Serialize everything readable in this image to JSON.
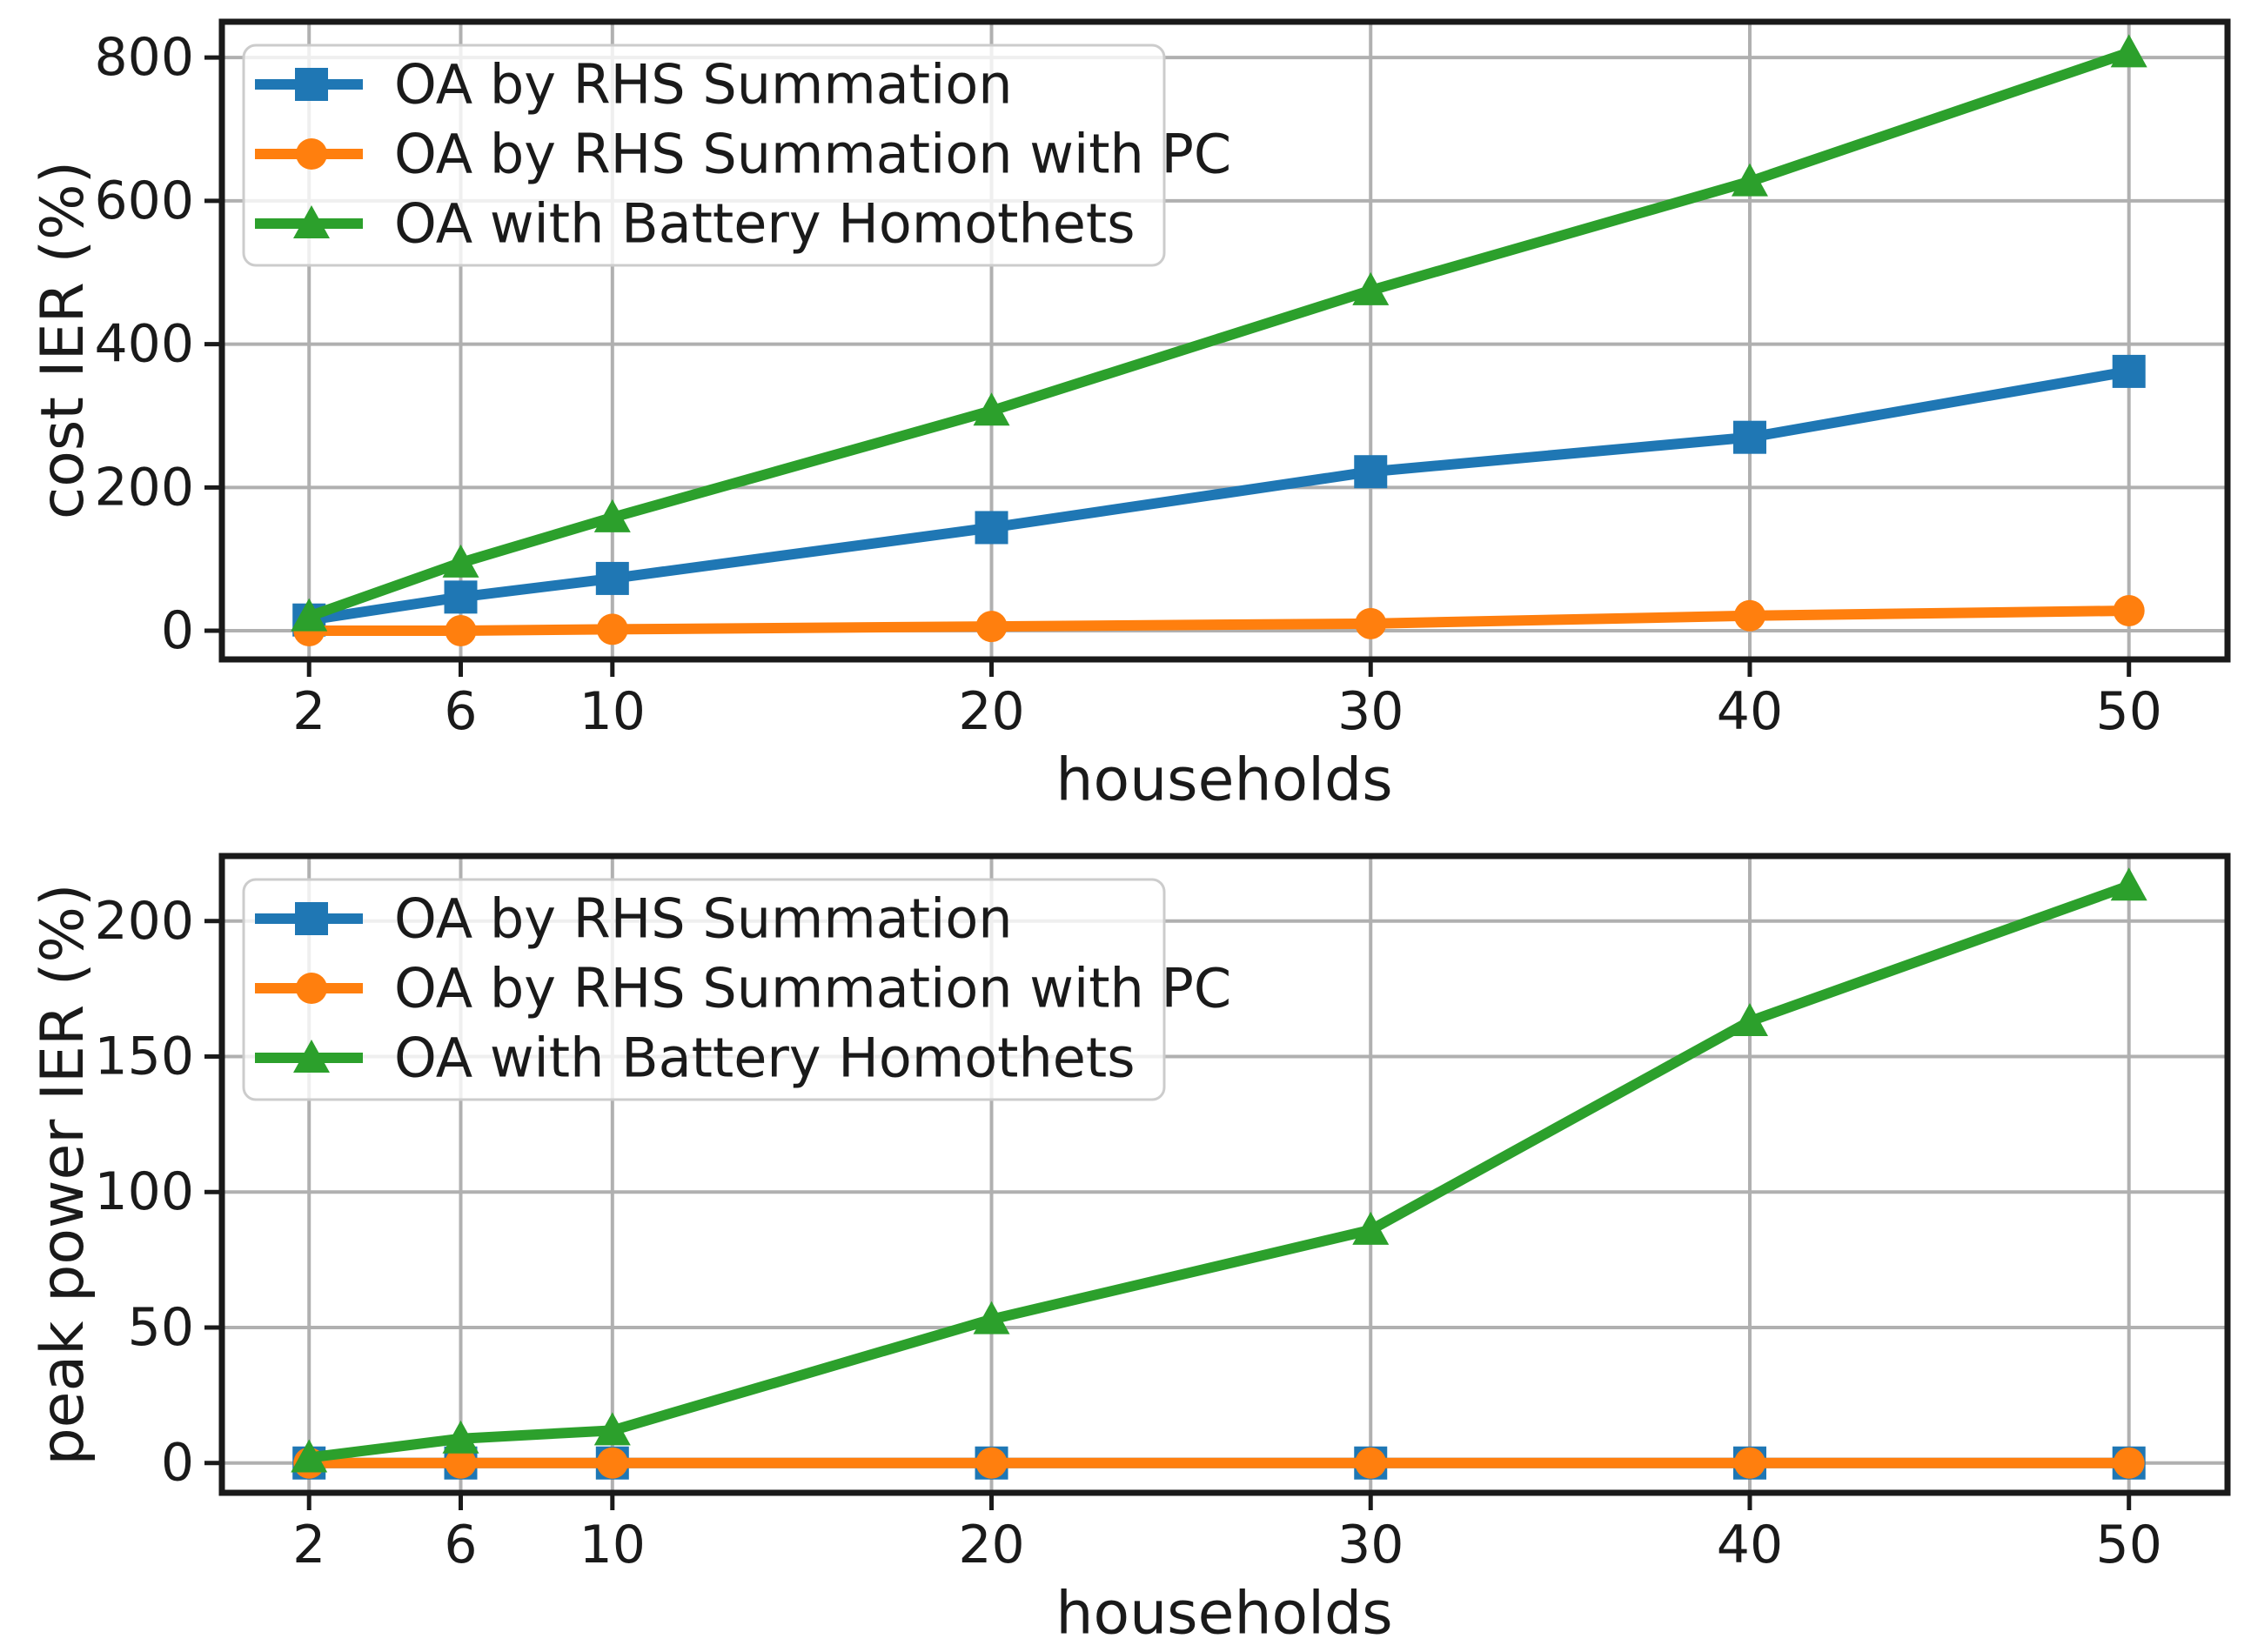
{
  "figure": {
    "background": "#ffffff",
    "grid_color": "#b0b0b0",
    "spine_color": "#1a1a1a",
    "legend_border_color": "#cccccc"
  },
  "chart_data": [
    {
      "id": "cost-ier",
      "type": "line",
      "title": "",
      "xlabel": "households",
      "ylabel": "cost IER (%)",
      "x": [
        2,
        6,
        10,
        20,
        30,
        40,
        50
      ],
      "xticks": [
        2,
        6,
        10,
        20,
        30,
        40,
        50
      ],
      "yticks": [
        0,
        200,
        400,
        600,
        800
      ],
      "xlim": [
        -0.3,
        52.6
      ],
      "ylim": [
        -40,
        850
      ],
      "grid": true,
      "legend_position": "upper left",
      "series": [
        {
          "name": "OA by RHS Summation",
          "color": "#1f77b4",
          "marker": "square",
          "values": [
            15,
            47,
            73,
            144,
            222,
            270,
            362
          ]
        },
        {
          "name": "OA by RHS Summation with PC",
          "color": "#ff7f0e",
          "marker": "circle",
          "values": [
            0,
            0,
            2,
            6,
            10,
            21,
            28
          ]
        },
        {
          "name": "OA with Battery Homothets",
          "color": "#2ca02c",
          "marker": "triangle",
          "values": [
            20,
            95,
            158,
            307,
            475,
            627,
            807
          ]
        }
      ]
    },
    {
      "id": "peak-power-ier",
      "type": "line",
      "title": "",
      "xlabel": "households",
      "ylabel": "peak power IER (%)",
      "x": [
        2,
        6,
        10,
        20,
        30,
        40,
        50
      ],
      "xticks": [
        2,
        6,
        10,
        20,
        30,
        40,
        50
      ],
      "yticks": [
        0,
        50,
        100,
        150,
        200
      ],
      "xlim": [
        -0.3,
        52.6
      ],
      "ylim": [
        -11,
        224
      ],
      "grid": true,
      "legend_position": "upper left",
      "series": [
        {
          "name": "OA by RHS Summation",
          "color": "#1f77b4",
          "marker": "square",
          "values": [
            0,
            0,
            0,
            0,
            0,
            0,
            0
          ]
        },
        {
          "name": "OA by RHS Summation with PC",
          "color": "#ff7f0e",
          "marker": "circle",
          "values": [
            0,
            0,
            0,
            0,
            0,
            0,
            0
          ]
        },
        {
          "name": "OA with Battery Homothets",
          "color": "#2ca02c",
          "marker": "triangle",
          "values": [
            2,
            9,
            12,
            53,
            86,
            163,
            213
          ]
        }
      ]
    }
  ]
}
